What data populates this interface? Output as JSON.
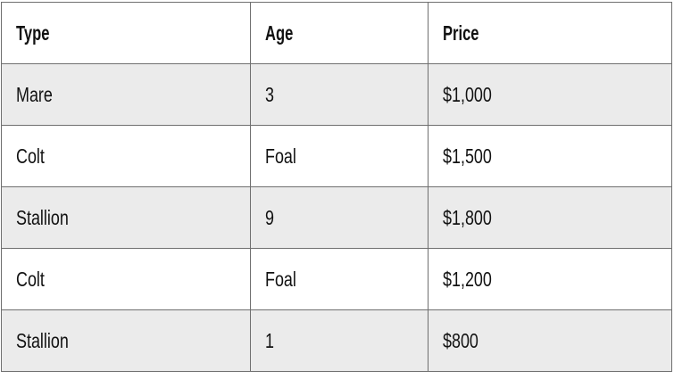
{
  "table": {
    "headers": [
      "Type",
      "Age",
      "Price"
    ],
    "rows": [
      [
        "Mare",
        "3",
        "$1,000"
      ],
      [
        "Colt",
        "Foal",
        "$1,500"
      ],
      [
        "Stallion",
        "9",
        "$1,800"
      ],
      [
        "Colt",
        "Foal",
        "$1,200"
      ],
      [
        "Stallion",
        "1",
        "$800"
      ]
    ],
    "colors": {
      "striped_row": "#ebebeb",
      "border": "#6f6f6f"
    }
  }
}
